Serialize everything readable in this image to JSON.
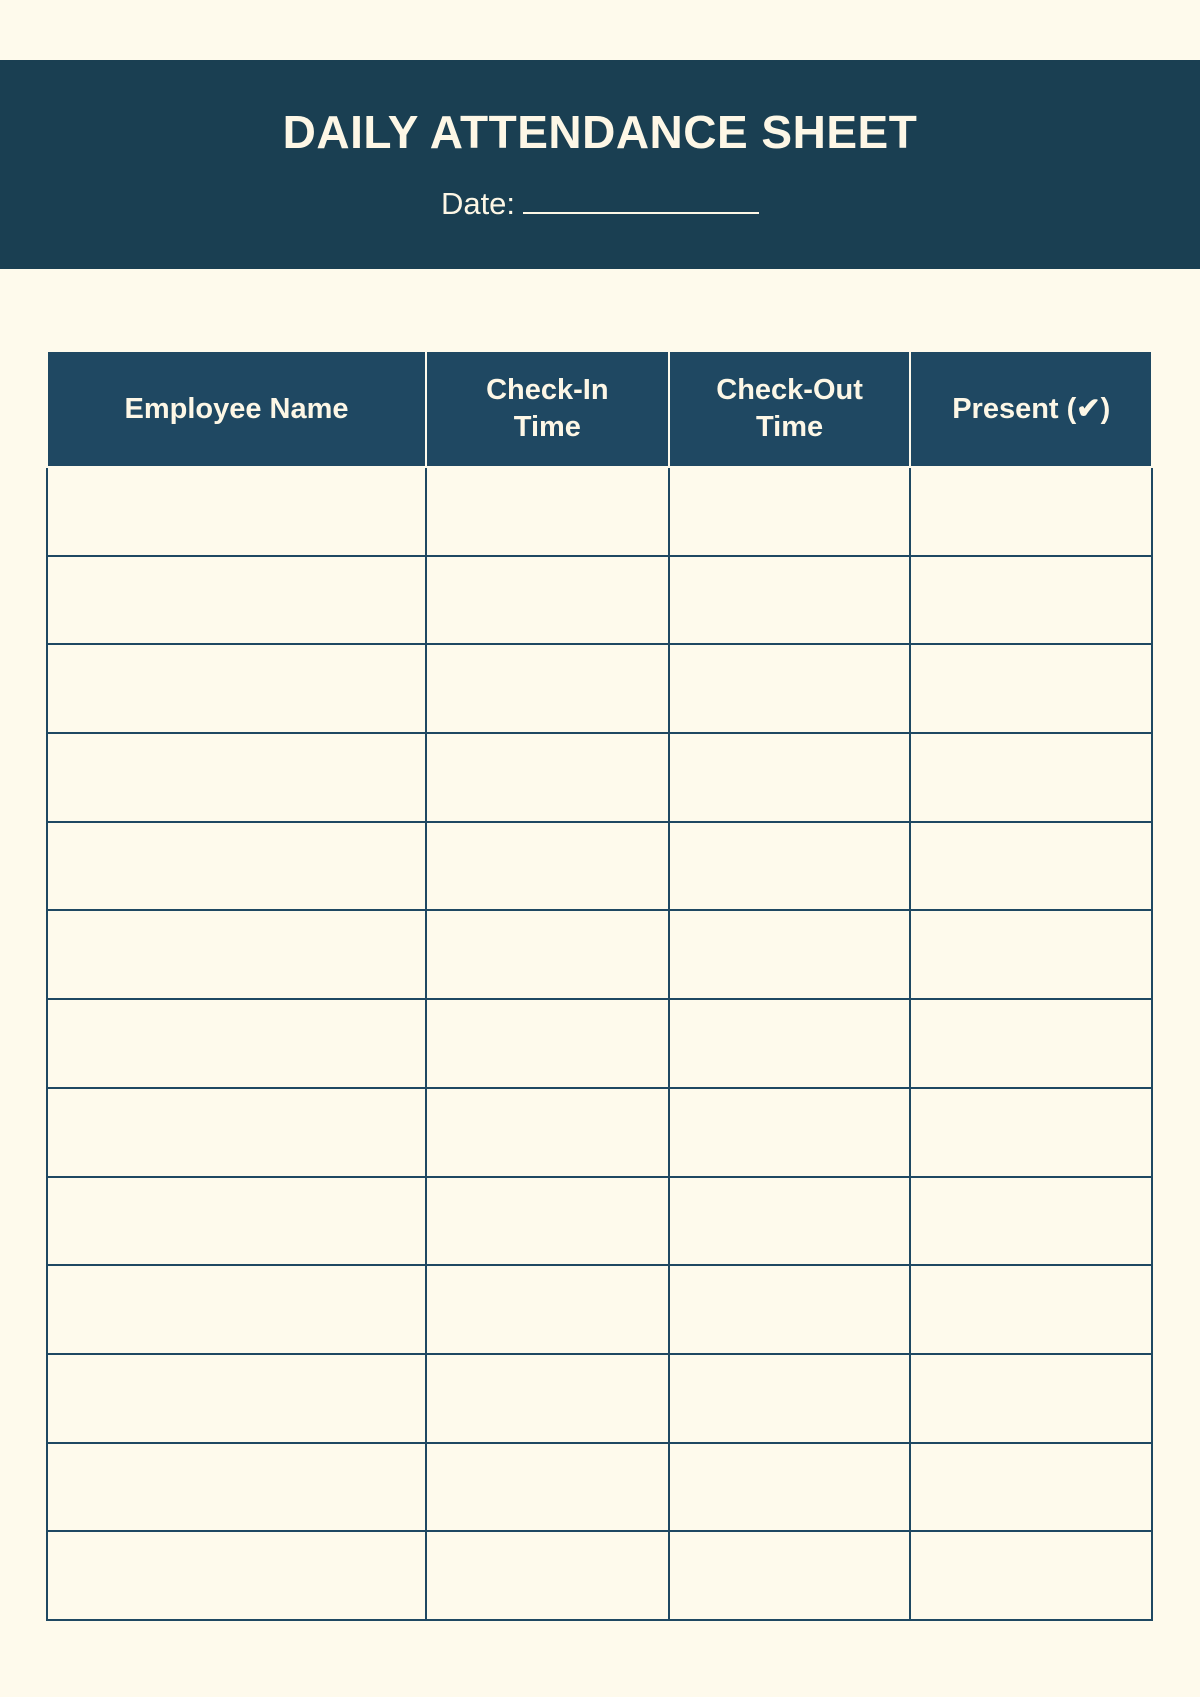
{
  "header": {
    "title": "DAILY ATTENDANCE SHEET",
    "date_label": "Date:"
  },
  "table": {
    "columns": [
      "Employee Name",
      "Check-In Time",
      "Check-Out Time",
      "Present (✔)"
    ],
    "row_count": 13
  },
  "colors": {
    "banner": "#1a3f52",
    "header_cells": "#1f4862",
    "background": "#fefaec"
  }
}
